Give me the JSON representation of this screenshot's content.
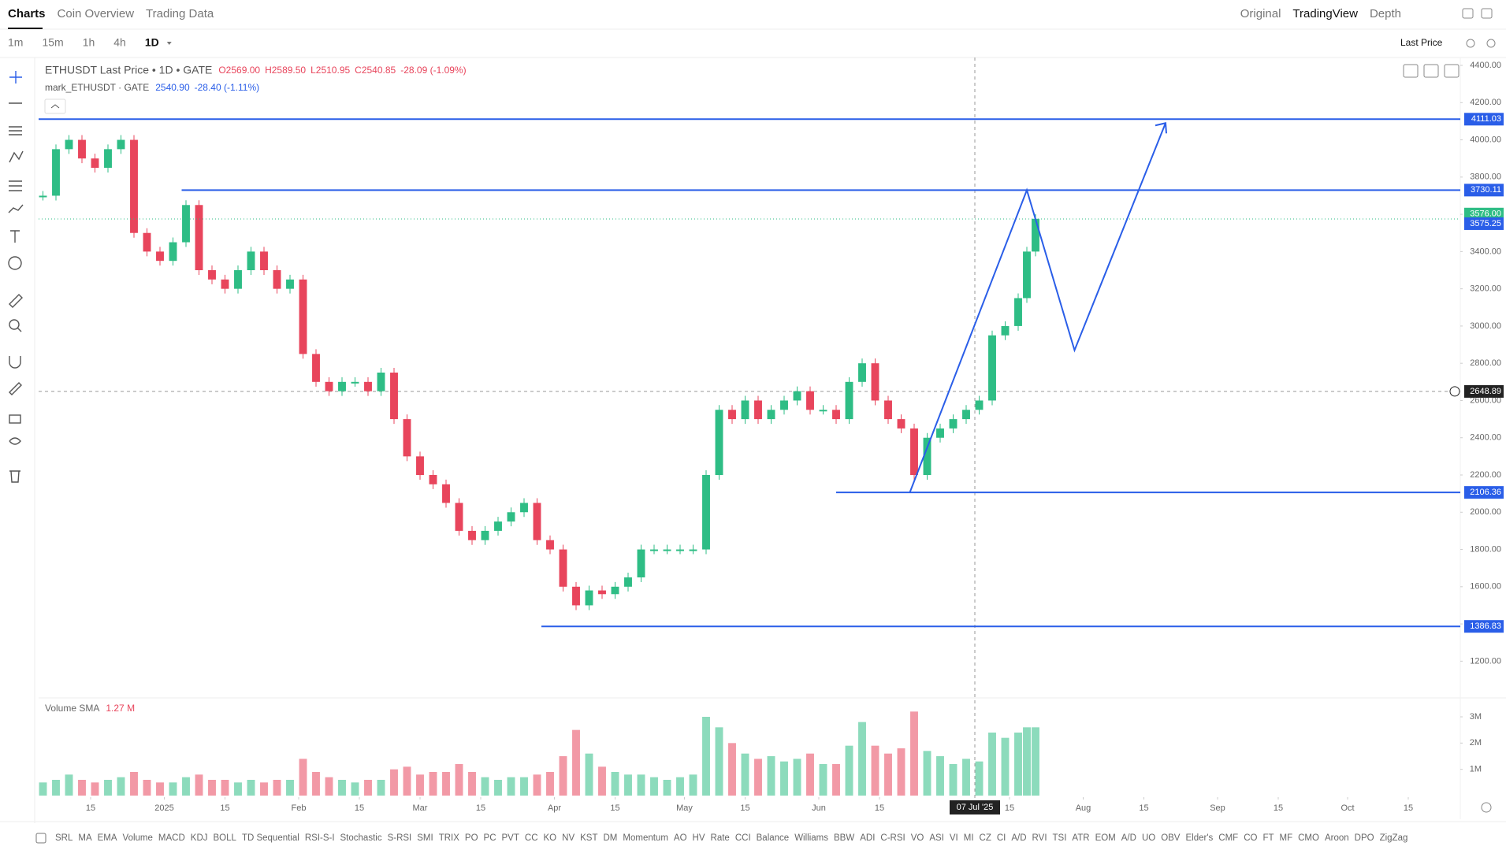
{
  "ui": {
    "tabs": [
      "Charts",
      "Coin Overview",
      "Trading Data"
    ],
    "views": [
      "Original",
      "TradingView",
      "Depth"
    ],
    "intervals": [
      "1m",
      "15m",
      "1h",
      "4h",
      "1D"
    ],
    "price_type": "Last Price",
    "indicators": [
      "SRL",
      "MA",
      "EMA",
      "Volume",
      "MACD",
      "KDJ",
      "BOLL",
      "TD Sequential",
      "RSI-S-I",
      "Stochastic",
      "S-RSI",
      "SMI",
      "TRIX",
      "PO",
      "PC",
      "PVT",
      "CC",
      "KO",
      "NV",
      "KST",
      "DM",
      "Momentum",
      "AO",
      "HV",
      "Rate",
      "CCI",
      "Balance",
      "Williams",
      "BBW",
      "ADI",
      "C-RSI",
      "VO",
      "ASI",
      "VI",
      "MI",
      "CZ",
      "CI",
      "A/D",
      "RVI",
      "TSI",
      "ATR",
      "EOM",
      "A/D",
      "UO",
      "OBV",
      "Elder's",
      "CMF",
      "CO",
      "FT",
      "MF",
      "CMO",
      "Aroon",
      "DPO",
      "ZigZag"
    ]
  },
  "chart_data": {
    "type": "candlestick",
    "legend": {
      "symbol": "ETHUSDT Last Price • 1D • GATE",
      "ohlc": [
        "O2569.00",
        "H2589.50",
        "L2510.95",
        "C2540.85",
        "-28.09 (-1.09%)"
      ],
      "mark": "mark_ETHUSDT · GATE",
      "mark_values": [
        "2540.90",
        "-28.40 (-1.11%)"
      ]
    },
    "volume_legend": {
      "name": "Volume SMA",
      "value": "1.27 M"
    },
    "x": [
      -28,
      -25,
      -22,
      -19,
      -16,
      -13,
      -10,
      -7,
      -4,
      -1,
      2,
      5,
      8,
      11,
      14,
      17,
      20,
      23,
      26,
      29,
      32,
      35,
      38,
      41,
      44,
      47,
      50,
      53,
      56,
      59,
      62,
      65,
      68,
      71,
      74,
      77,
      80,
      83,
      86,
      89,
      92,
      95,
      98,
      101,
      104,
      107,
      110,
      113,
      116,
      119,
      122,
      125,
      128,
      131,
      134,
      137,
      140,
      143,
      146,
      149,
      152,
      155,
      158,
      161,
      164,
      167,
      170,
      173,
      176,
      179,
      182,
      185,
      188,
      191,
      194,
      197,
      199,
      201
    ],
    "values": [
      3700,
      3950,
      4000,
      3900,
      3850,
      3950,
      4000,
      3500,
      3400,
      3350,
      3450,
      3650,
      3300,
      3250,
      3200,
      3300,
      3400,
      3300,
      3200,
      3250,
      2850,
      2700,
      2650,
      2700,
      2700,
      2650,
      2750,
      2500,
      2300,
      2200,
      2150,
      2050,
      1900,
      1850,
      1900,
      1950,
      2000,
      2050,
      1850,
      1800,
      1600,
      1500,
      1580,
      1560,
      1600,
      1650,
      1800,
      1800,
      1800,
      1800,
      1800,
      2200,
      2550,
      2500,
      2600,
      2500,
      2550,
      2600,
      2650,
      2550,
      2550,
      2500,
      2700,
      2800,
      2600,
      2500,
      2450,
      2200,
      2400,
      2450,
      2500,
      2550,
      2600,
      2950,
      3000,
      3150,
      3400,
      3576
    ],
    "volume": [
      0.5,
      0.6,
      0.8,
      0.6,
      0.5,
      0.6,
      0.7,
      0.9,
      0.6,
      0.5,
      0.5,
      0.7,
      0.8,
      0.6,
      0.6,
      0.5,
      0.6,
      0.5,
      0.6,
      0.6,
      1.4,
      0.9,
      0.7,
      0.6,
      0.5,
      0.6,
      0.6,
      1.0,
      1.1,
      0.8,
      0.9,
      0.9,
      1.2,
      0.9,
      0.7,
      0.6,
      0.7,
      0.7,
      0.8,
      0.9,
      1.5,
      2.5,
      1.6,
      1.1,
      0.9,
      0.8,
      0.8,
      0.7,
      0.6,
      0.7,
      0.8,
      3.0,
      2.6,
      2.0,
      1.6,
      1.4,
      1.5,
      1.3,
      1.4,
      1.6,
      1.2,
      1.2,
      1.9,
      2.8,
      1.9,
      1.6,
      1.8,
      3.2,
      1.7,
      1.5,
      1.2,
      1.4,
      1.3,
      2.4,
      2.2,
      2.4,
      2.6,
      2.6
    ],
    "xlim": [
      -29,
      299
    ],
    "xticks": [
      {
        "value": -17,
        "label": "15"
      },
      {
        "value": 0,
        "label": "2025"
      },
      {
        "value": 14,
        "label": "15"
      },
      {
        "value": 31,
        "label": "Feb"
      },
      {
        "value": 45,
        "label": "15"
      },
      {
        "value": 59,
        "label": "Mar"
      },
      {
        "value": 73,
        "label": "15"
      },
      {
        "value": 90,
        "label": "Apr"
      },
      {
        "value": 104,
        "label": "15"
      },
      {
        "value": 120,
        "label": "May"
      },
      {
        "value": 134,
        "label": "15"
      },
      {
        "value": 151,
        "label": "Jun"
      },
      {
        "value": 165,
        "label": "15"
      },
      {
        "value": 195,
        "label": "15"
      },
      {
        "value": 212,
        "label": "Aug"
      },
      {
        "value": 226,
        "label": "15"
      },
      {
        "value": 243,
        "label": "Sep"
      },
      {
        "value": 257,
        "label": "15"
      },
      {
        "value": 273,
        "label": "Oct"
      },
      {
        "value": 287,
        "label": "15"
      }
    ],
    "ylim": [
      1100,
      4400
    ],
    "yticks": [
      {
        "value": 1200,
        "label": "1200.00"
      },
      {
        "value": 1400,
        "label": "1400.00"
      },
      {
        "value": 1600,
        "label": "1600.00"
      },
      {
        "value": 1800,
        "label": "1800.00"
      },
      {
        "value": 2000,
        "label": "2000.00"
      },
      {
        "value": 2200,
        "label": "2200.00"
      },
      {
        "value": 2400,
        "label": "2400.00"
      },
      {
        "value": 2600,
        "label": "2600.00"
      },
      {
        "value": 2800,
        "label": "2800.00"
      },
      {
        "value": 3000,
        "label": "3000.00"
      },
      {
        "value": 3200,
        "label": "3200.00"
      },
      {
        "value": 3400,
        "label": "3400.00"
      },
      {
        "value": 3600,
        "label": "3600.00"
      },
      {
        "value": 3800,
        "label": "3800.00"
      },
      {
        "value": 4000,
        "label": "4000.00"
      },
      {
        "value": 4200,
        "label": "4200.00"
      },
      {
        "value": 4400,
        "label": "4400.00"
      }
    ],
    "volume_ylim": [
      0,
      3.6
    ],
    "volume_ticks": [
      {
        "value": 1,
        "label": "1M"
      },
      {
        "value": 2,
        "label": "2M"
      },
      {
        "value": 3,
        "label": "3M"
      }
    ],
    "levels": [
      {
        "value": 4111.03,
        "from": -29
      },
      {
        "value": 3730.11,
        "from": 4
      },
      {
        "value": 2106.36,
        "from": 155
      },
      {
        "value": 1386.83,
        "from": 87
      }
    ],
    "projection": {
      "x": [
        172,
        199,
        210,
        231
      ],
      "y": [
        2106.36,
        3730.11,
        2870,
        4090
      ]
    },
    "last_price": {
      "value": 3576.0,
      "label": "3576.00"
    },
    "mark_price": 3575.25,
    "crosshair": {
      "x": 187,
      "x_label": "07 Jul '25",
      "price": 2648.89
    },
    "up_color": "#2ebd85",
    "down_color": "#e8455c",
    "line_color": "#2a5ee8"
  }
}
